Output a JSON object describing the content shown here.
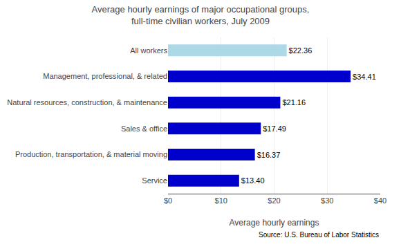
{
  "chart_data": {
    "type": "bar",
    "orientation": "horizontal",
    "title": "Average hourly earnings of major occupational groups,\nfull-time civilian workers, July 2009",
    "categories": [
      "Service",
      "Production, transportation, & material moving",
      "Sales & office",
      "Natural resources, construction, & maintenance",
      "Management, professional, & related",
      "All workers"
    ],
    "values": [
      13.4,
      16.37,
      17.49,
      21.16,
      34.41,
      22.36
    ],
    "value_labels": [
      "$13.40",
      "$16.37",
      "$17.49",
      "$21.16",
      "$34.41",
      "$22.36"
    ],
    "data_labels": true,
    "colors": [
      "#0000CC",
      "#0000CC",
      "#0000CC",
      "#0000CC",
      "#0000CC",
      "#ADD8E6"
    ],
    "xlabel": "Average hourly earnings",
    "xlim": [
      0,
      40
    ],
    "xticks": [
      {
        "value": 0,
        "label": "$0"
      },
      {
        "value": 10,
        "label": "$10"
      },
      {
        "value": 20,
        "label": "$20"
      },
      {
        "value": 30,
        "label": "$30"
      },
      {
        "value": 40,
        "label": "$40"
      }
    ],
    "grid": true,
    "annotations": [
      "Source: U.S. Bureau of Labor Statistics"
    ]
  }
}
